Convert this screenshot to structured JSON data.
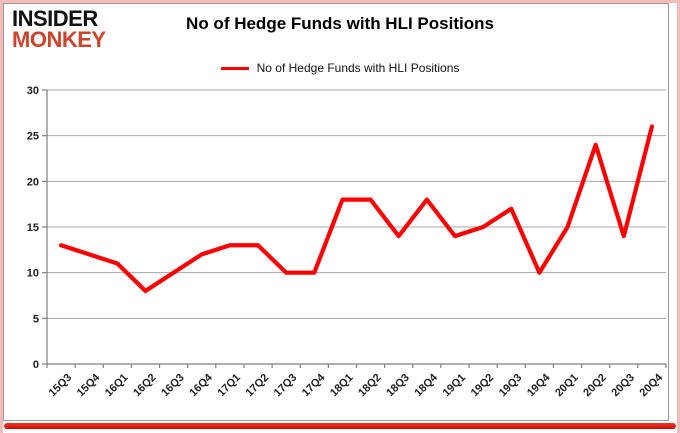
{
  "logo": {
    "line1": "INSIDER",
    "line2": "MONKEY"
  },
  "header": {
    "title": "No of Hedge Funds with HLI Positions"
  },
  "legend": {
    "label": "No of Hedge Funds with HLI Positions"
  },
  "colors": {
    "series_red": "#ff0000",
    "logo_accent": "#d0432b",
    "border_pink": "#f4bcb6",
    "bottom_bar_red": "#d81308",
    "grid_gray": "#a6a6a6",
    "axis_gray": "#7f7f7f",
    "tick_text": "#1f1f1f"
  },
  "chart_data": {
    "type": "line",
    "title": "No of Hedge Funds with HLI Positions",
    "categories": [
      "15Q3",
      "15Q4",
      "16Q1",
      "16Q2",
      "16Q3",
      "16Q4",
      "17Q1",
      "17Q2",
      "17Q3",
      "17Q4",
      "18Q1",
      "18Q2",
      "18Q3",
      "18Q4",
      "19Q1",
      "19Q2",
      "19Q3",
      "19Q4",
      "20Q1",
      "20Q2",
      "20Q3",
      "20Q4"
    ],
    "series": [
      {
        "name": "No of Hedge Funds with HLI Positions",
        "color": "#ff0000",
        "values": [
          13,
          12,
          11,
          8,
          10,
          12,
          13,
          13,
          10,
          10,
          18,
          18,
          14,
          18,
          14,
          15,
          17,
          10,
          15,
          24,
          14,
          26
        ]
      }
    ],
    "xlabel": "",
    "ylabel": "",
    "ylim": [
      0,
      30
    ],
    "yticks": [
      0,
      5,
      10,
      15,
      20,
      25,
      30
    ],
    "grid": true,
    "legend_position": "top"
  }
}
